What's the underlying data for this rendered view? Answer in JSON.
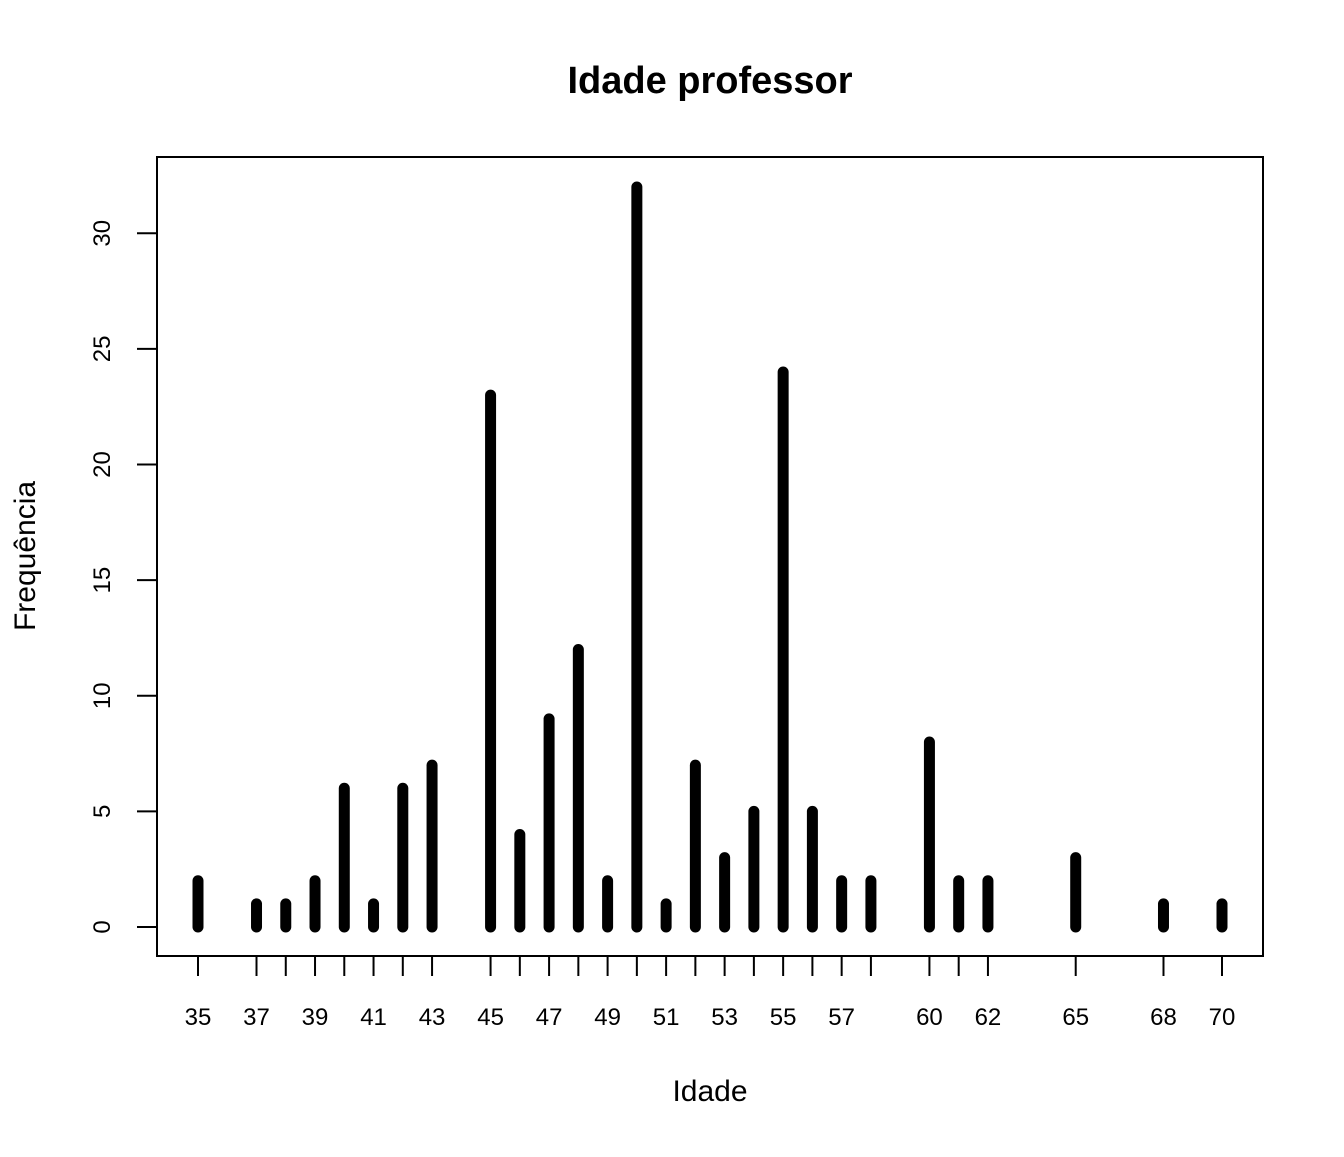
{
  "chart_data": {
    "type": "bar",
    "title": "Idade professor",
    "xlabel": "Idade",
    "ylabel": "Frequência",
    "x": [
      35,
      37,
      38,
      39,
      40,
      41,
      42,
      43,
      45,
      46,
      47,
      48,
      49,
      50,
      51,
      52,
      53,
      54,
      55,
      56,
      57,
      58,
      60,
      61,
      62,
      65,
      68,
      70
    ],
    "values": [
      2,
      1,
      1,
      2,
      6,
      1,
      6,
      7,
      23,
      4,
      9,
      12,
      2,
      32,
      1,
      7,
      3,
      5,
      24,
      5,
      2,
      2,
      8,
      2,
      2,
      3,
      1,
      1
    ],
    "x_tick_labels": [
      "35",
      "37",
      "39",
      "41",
      "43",
      "45",
      "47",
      "49",
      "51",
      "53",
      "55",
      "57",
      "60",
      "62",
      "65",
      "68",
      "70"
    ],
    "y_ticks": [
      0,
      5,
      10,
      15,
      20,
      25,
      30
    ],
    "ylim": [
      0,
      32
    ],
    "grid": false,
    "legend": "none",
    "bar_color": "#000000"
  }
}
